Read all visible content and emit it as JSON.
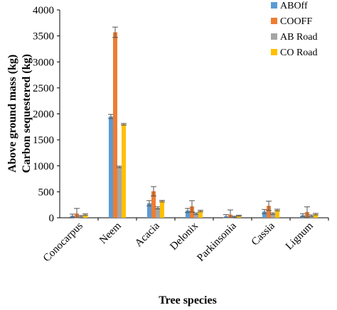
{
  "chart_data": {
    "type": "bar",
    "title": "",
    "xlabel": "Tree species",
    "ylabel": [
      "Above ground mass (kg)",
      "Carbon sequestered (kg)"
    ],
    "ylim": [
      0,
      4000
    ],
    "yticks": [
      0,
      500,
      1000,
      1500,
      2000,
      2500,
      3000,
      3500,
      4000
    ],
    "categories": [
      "Conocarpus",
      "Neem",
      "Acacia",
      "Delonix",
      "Parkinsonia",
      "Cassia",
      "Lignum"
    ],
    "series": [
      {
        "name": "ABOff",
        "color": "#5B9BD5",
        "values": [
          40,
          1950,
          280,
          140,
          30,
          120,
          50
        ],
        "errors": [
          30,
          40,
          50,
          40,
          30,
          40,
          30
        ]
      },
      {
        "name": "COOFF",
        "color": "#ED7D31",
        "values": [
          80,
          3570,
          510,
          220,
          60,
          230,
          110
        ],
        "errors": [
          100,
          100,
          90,
          110,
          90,
          90,
          100
        ]
      },
      {
        "name": "AB Road",
        "color": "#A5A5A5",
        "values": [
          30,
          980,
          190,
          80,
          20,
          80,
          40
        ],
        "errors": [
          15,
          15,
          20,
          15,
          10,
          15,
          15
        ]
      },
      {
        "name": "CO Road",
        "color": "#FFC000",
        "values": [
          60,
          1800,
          320,
          130,
          40,
          150,
          70
        ],
        "errors": [
          15,
          15,
          15,
          15,
          10,
          15,
          15
        ]
      }
    ],
    "legend": "top-right",
    "grid": false
  }
}
